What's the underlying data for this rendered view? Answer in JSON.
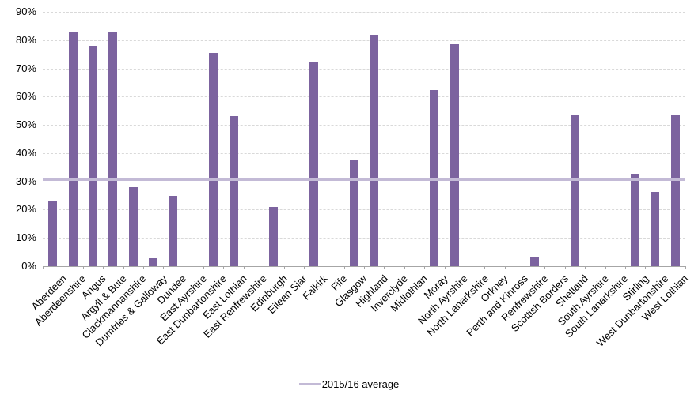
{
  "chart_data": {
    "type": "bar",
    "title": "",
    "xlabel": "",
    "ylabel": "",
    "categories": [
      "Aberdeen",
      "Aberdeenshire",
      "Angus",
      "Argyll & Bute",
      "Clackmannanshire",
      "Dumfries & Galloway",
      "Dundee",
      "East Ayrshire",
      "East Dunbartonshire",
      "East Lothian",
      "East Renfrewshire",
      "Edinburgh",
      "Eilean Siar",
      "Falkirk",
      "Fife",
      "Glasgow",
      "Highland",
      "Inverclyde",
      "Midlothian",
      "Moray",
      "North Ayrshire",
      "North Lanarkshire",
      "Orkney",
      "Perth and Kinross",
      "Renfrewshire",
      "Scottish Borders",
      "Shetland",
      "South Ayrshire",
      "South Lanarkshire",
      "Stirling",
      "West Dunbartonshire",
      "West Lothian"
    ],
    "values": [
      23,
      83,
      78,
      83,
      28,
      2.7,
      25,
      0,
      75.5,
      53,
      0,
      21,
      0,
      72.5,
      0,
      37.5,
      81.8,
      0,
      0,
      62.3,
      78.5,
      0,
      0,
      0,
      3.2,
      0,
      53.7,
      0,
      0,
      32.7,
      26.3,
      53.8
    ],
    "average_line": {
      "label": "2015/16 average",
      "value": 30.7
    },
    "y_axis": {
      "min": 0,
      "max": 90,
      "step": 10,
      "tick_labels": [
        "0%",
        "10%",
        "20%",
        "30%",
        "40%",
        "50%",
        "60%",
        "70%",
        "80%",
        "90%"
      ]
    },
    "grid": true,
    "legend_position": "bottom",
    "colors": {
      "bar": "#7c639f",
      "average_line": "#c3bad6",
      "gridline": "#d9d9d9",
      "axis": "#a6a6a6",
      "text": "#000000",
      "background": "#ffffff"
    }
  }
}
